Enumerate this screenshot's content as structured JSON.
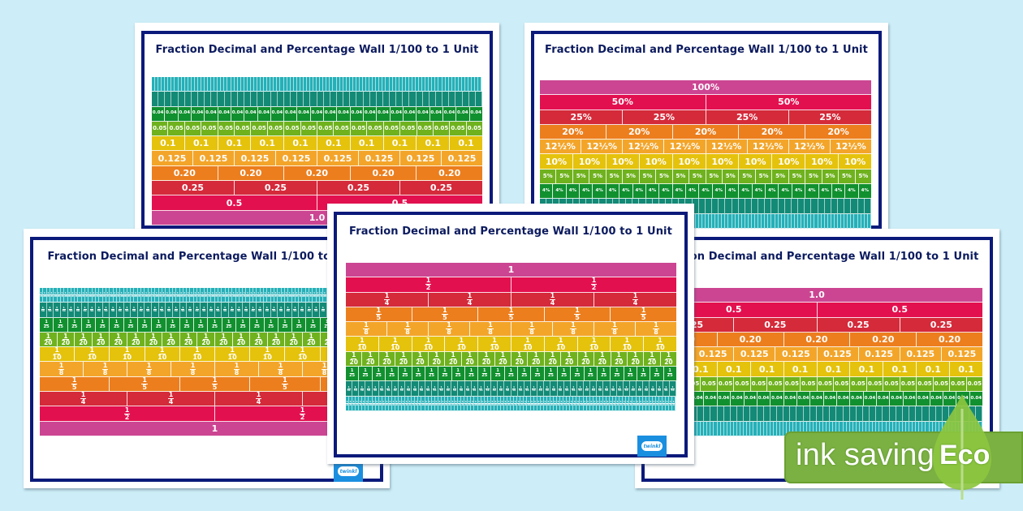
{
  "page": {
    "background": "#cdeef8",
    "frame_color": "#0b1a7a",
    "title_color": "#0b1a5e"
  },
  "colors": {
    "r1": "#cc4592",
    "r2": "#e3104f",
    "r4": "#d42a3a",
    "r5": "#ec7e1d",
    "r8": "#f3a52a",
    "r10": "#e5c20c",
    "r20": "#6fb21e",
    "r25": "#11902f",
    "r50": "#138a76",
    "r100": "#25b0b8"
  },
  "posters": [
    {
      "id": "decimal-top-left",
      "title": "Fraction Decimal and Percentage Wall 1/100  to 1 Unit",
      "order": "small-first",
      "rows": [
        {
          "key": "r100",
          "count": 100,
          "label": ""
        },
        {
          "key": "r50",
          "count": 50,
          "label": ""
        },
        {
          "key": "r25",
          "count": 25,
          "label": "0.04"
        },
        {
          "key": "r20",
          "count": 20,
          "label": "0.05"
        },
        {
          "key": "r10",
          "count": 10,
          "label": "0.1"
        },
        {
          "key": "r8",
          "count": 8,
          "label": "0.125"
        },
        {
          "key": "r5",
          "count": 5,
          "label": "0.20"
        },
        {
          "key": "r4",
          "count": 4,
          "label": "0.25"
        },
        {
          "key": "r2",
          "count": 2,
          "label": "0.5"
        },
        {
          "key": "r1",
          "count": 1,
          "label": "1.0"
        }
      ]
    },
    {
      "id": "percentage-top-right",
      "title": "Fraction Decimal and Percentage Wall 1/100  to 1 Unit",
      "order": "large-first",
      "rows": [
        {
          "key": "r1",
          "count": 1,
          "label": "100%"
        },
        {
          "key": "r2",
          "count": 2,
          "label": "50%"
        },
        {
          "key": "r4",
          "count": 4,
          "label": "25%"
        },
        {
          "key": "r5",
          "count": 5,
          "label": "20%"
        },
        {
          "key": "r8",
          "count": 8,
          "label": "12½%"
        },
        {
          "key": "r10",
          "count": 10,
          "label": "10%"
        },
        {
          "key": "r20",
          "count": 20,
          "label": "5%"
        },
        {
          "key": "r25",
          "count": 25,
          "label": "4%"
        },
        {
          "key": "r50",
          "count": 50,
          "label": ""
        },
        {
          "key": "r100",
          "count": 100,
          "label": ""
        }
      ]
    },
    {
      "id": "fraction-bottom-left",
      "title": "Fraction Decimal and Percentage Wall 1/100  to 1 Unit",
      "order": "small-first",
      "rows": [
        {
          "key": "r100",
          "count": 100,
          "label": "1/100"
        },
        {
          "key": "r50",
          "count": 50,
          "label": "1/50"
        },
        {
          "key": "r25",
          "count": 25,
          "label": "1/25"
        },
        {
          "key": "r20",
          "count": 20,
          "label": "1/20"
        },
        {
          "key": "r10",
          "count": 10,
          "label": "1/10"
        },
        {
          "key": "r8",
          "count": 8,
          "label": "1/8"
        },
        {
          "key": "r5",
          "count": 5,
          "label": "1/5"
        },
        {
          "key": "r4",
          "count": 4,
          "label": "1/4"
        },
        {
          "key": "r2",
          "count": 2,
          "label": "1/2"
        },
        {
          "key": "r1",
          "count": 1,
          "label": "1"
        }
      ]
    },
    {
      "id": "decimal-bottom-right",
      "title": "Fraction Decimal and Percentage Wall 1/100  to 1 Unit",
      "order": "large-first",
      "rows": [
        {
          "key": "r1",
          "count": 1,
          "label": "1.0"
        },
        {
          "key": "r2",
          "count": 2,
          "label": "0.5"
        },
        {
          "key": "r4",
          "count": 4,
          "label": "0.25"
        },
        {
          "key": "r5",
          "count": 5,
          "label": "0.20"
        },
        {
          "key": "r8",
          "count": 8,
          "label": "0.125"
        },
        {
          "key": "r10",
          "count": 10,
          "label": "0.1"
        },
        {
          "key": "r20",
          "count": 20,
          "label": "0.05"
        },
        {
          "key": "r25",
          "count": 25,
          "label": "0.04"
        },
        {
          "key": "r50",
          "count": 50,
          "label": ""
        },
        {
          "key": "r100",
          "count": 100,
          "label": ""
        }
      ]
    },
    {
      "id": "fraction-center",
      "title": "Fraction Decimal and Percentage Wall 1/100  to 1 Unit",
      "order": "large-first",
      "rows": [
        {
          "key": "r1",
          "count": 1,
          "label": "1"
        },
        {
          "key": "r2",
          "count": 2,
          "label": "1/2"
        },
        {
          "key": "r4",
          "count": 4,
          "label": "1/4"
        },
        {
          "key": "r5",
          "count": 5,
          "label": "1/5"
        },
        {
          "key": "r8",
          "count": 8,
          "label": "1/8"
        },
        {
          "key": "r10",
          "count": 10,
          "label": "1/10"
        },
        {
          "key": "r20",
          "count": 20,
          "label": "1/20"
        },
        {
          "key": "r25",
          "count": 25,
          "label": "1/25"
        },
        {
          "key": "r50",
          "count": 50,
          "label": "1/50"
        },
        {
          "key": "r100",
          "count": 100,
          "label": "1/100"
        }
      ]
    }
  ],
  "logo": {
    "text": "twinkl"
  },
  "eco_badge": {
    "text": "ink saving",
    "word": "Eco",
    "color": "#7bb043",
    "leaf_color": "#8cc63f"
  }
}
